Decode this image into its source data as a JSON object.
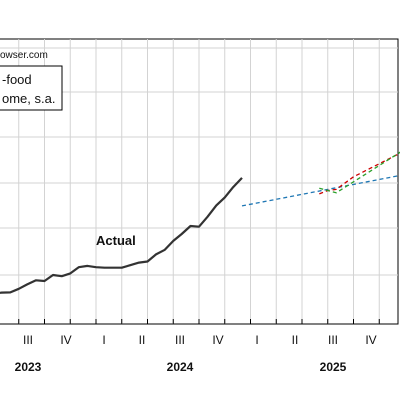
{
  "source_text": "owser.com",
  "legend": {
    "lines": [
      "-food",
      "ome, s.a."
    ]
  },
  "chart_data": {
    "type": "line",
    "x_tick_labels": [
      "III",
      "IV",
      "I",
      "II",
      "III",
      "IV",
      "I",
      "II",
      "III",
      "IV"
    ],
    "year_labels": [
      "2023",
      "2024",
      "2025"
    ],
    "annotation": "Actual",
    "grid": true,
    "series": [
      {
        "name": "Actual",
        "color": "#333333",
        "style": "solid",
        "x": [
          0,
          0.33,
          0.67,
          1,
          1.33,
          1.67,
          2,
          2.33,
          2.67,
          3,
          3.33,
          3.67,
          4,
          4.33,
          4.67,
          5,
          5.33,
          5.67,
          6,
          6.33,
          6.67,
          7,
          7.33,
          7.67,
          8,
          8.33,
          8.67,
          9,
          9.33,
          9.67
        ],
        "y": [
          1.4,
          1.9,
          2.0,
          3.6,
          5.5,
          7.3,
          7.0,
          9.6,
          9.1,
          10.3,
          13.0,
          13.6,
          13.0,
          12.8,
          12.8,
          12.8,
          13.9,
          15.0,
          15.5,
          18.6,
          20.6,
          24.5,
          27.5,
          31.0,
          30.7,
          35.0,
          40.0,
          43.5,
          48.0,
          52.0
        ]
      },
      {
        "name": "Forecast blue",
        "color": "#1f77b4",
        "style": "dashed",
        "marker": "square",
        "x": [
          9.67,
          19
        ],
        "y": [
          39.8,
          60.0
        ]
      },
      {
        "name": "Forecast red",
        "color": "#cc0000",
        "style": "dashed",
        "marker": "triangle-up",
        "x": [
          12.67,
          13.0,
          13.33,
          14.0,
          19
        ],
        "y": [
          45.0,
          46.5,
          47.0,
          52.5,
          81.0
        ]
      },
      {
        "name": "Forecast green",
        "color": "#2ca02c",
        "style": "dashed",
        "marker": "triangle-down",
        "x": [
          12.67,
          13.33,
          19
        ],
        "y": [
          47.5,
          45.5,
          86.0
        ]
      }
    ]
  }
}
